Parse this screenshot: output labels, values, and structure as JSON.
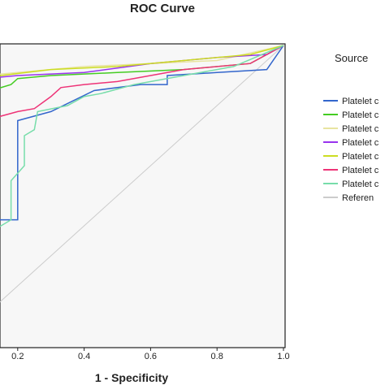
{
  "chart_data": {
    "type": "line",
    "title": "ROC Curve",
    "xlabel": "1 - Specificity",
    "ylabel": "",
    "xlim": [
      0,
      1.0
    ],
    "ylim": [
      0,
      1.0
    ],
    "x_ticks": [
      "0.2",
      "0.4",
      "0.6",
      "0.8",
      "1.0"
    ],
    "grid": false,
    "legend": {
      "title": "Source",
      "placement": "right"
    },
    "series": [
      {
        "name": "Platelet c",
        "color": "#3366cc",
        "points": [
          [
            0,
            0.42
          ],
          [
            0.2,
            0.42
          ],
          [
            0.2,
            0.75
          ],
          [
            0.3,
            0.78
          ],
          [
            0.43,
            0.85
          ],
          [
            0.57,
            0.87
          ],
          [
            0.65,
            0.87
          ],
          [
            0.65,
            0.9
          ],
          [
            0.8,
            0.91
          ],
          [
            0.95,
            0.92
          ],
          [
            1.0,
            1.0
          ]
        ]
      },
      {
        "name": "Platelet c",
        "color": "#44cc22",
        "points": [
          [
            0,
            0.78
          ],
          [
            0.05,
            0.8
          ],
          [
            0.1,
            0.82
          ],
          [
            0.12,
            0.85
          ],
          [
            0.18,
            0.87
          ],
          [
            0.2,
            0.89
          ],
          [
            0.3,
            0.9
          ],
          [
            0.5,
            0.91
          ],
          [
            0.7,
            0.92
          ],
          [
            0.9,
            0.94
          ],
          [
            1.0,
            1.0
          ]
        ]
      },
      {
        "name": "Platelet c",
        "color": "#e8e4a0",
        "points": [
          [
            0,
            0.85
          ],
          [
            0.05,
            0.88
          ],
          [
            0.1,
            0.9
          ],
          [
            0.2,
            0.91
          ],
          [
            0.4,
            0.93
          ],
          [
            0.6,
            0.94
          ],
          [
            0.8,
            0.95
          ],
          [
            1.0,
            1.0
          ]
        ]
      },
      {
        "name": "Platelet c",
        "color": "#9933ee",
        "points": [
          [
            0,
            0.87
          ],
          [
            0.05,
            0.88
          ],
          [
            0.1,
            0.89
          ],
          [
            0.2,
            0.9
          ],
          [
            0.4,
            0.91
          ],
          [
            0.6,
            0.94
          ],
          [
            0.8,
            0.96
          ],
          [
            0.95,
            0.97
          ],
          [
            1.0,
            1.0
          ]
        ]
      },
      {
        "name": "Platelet c",
        "color": "#ccdd22",
        "points": [
          [
            0,
            0.82
          ],
          [
            0.03,
            0.85
          ],
          [
            0.08,
            0.88
          ],
          [
            0.15,
            0.9
          ],
          [
            0.3,
            0.92
          ],
          [
            0.5,
            0.93
          ],
          [
            0.7,
            0.95
          ],
          [
            0.9,
            0.97
          ],
          [
            1.0,
            1.0
          ]
        ]
      },
      {
        "name": "Platelet c",
        "color": "#ee3377",
        "points": [
          [
            0,
            0.72
          ],
          [
            0.1,
            0.75
          ],
          [
            0.2,
            0.78
          ],
          [
            0.25,
            0.79
          ],
          [
            0.3,
            0.83
          ],
          [
            0.33,
            0.86
          ],
          [
            0.4,
            0.87
          ],
          [
            0.5,
            0.88
          ],
          [
            0.7,
            0.92
          ],
          [
            0.9,
            0.94
          ],
          [
            1.0,
            1.0
          ]
        ]
      },
      {
        "name": "Platelet c",
        "color": "#77ddaa",
        "points": [
          [
            0,
            0.33
          ],
          [
            0.05,
            0.35
          ],
          [
            0.1,
            0.38
          ],
          [
            0.15,
            0.4
          ],
          [
            0.18,
            0.42
          ],
          [
            0.18,
            0.55
          ],
          [
            0.22,
            0.6
          ],
          [
            0.22,
            0.7
          ],
          [
            0.25,
            0.72
          ],
          [
            0.26,
            0.78
          ],
          [
            0.35,
            0.8
          ],
          [
            0.4,
            0.83
          ],
          [
            0.45,
            0.84
          ],
          [
            0.55,
            0.87
          ],
          [
            0.7,
            0.9
          ],
          [
            0.85,
            0.93
          ],
          [
            1.0,
            1.0
          ]
        ]
      },
      {
        "name": "Referen",
        "color": "#cccccc",
        "points": [
          [
            0,
            0
          ],
          [
            1,
            1
          ]
        ]
      }
    ]
  }
}
